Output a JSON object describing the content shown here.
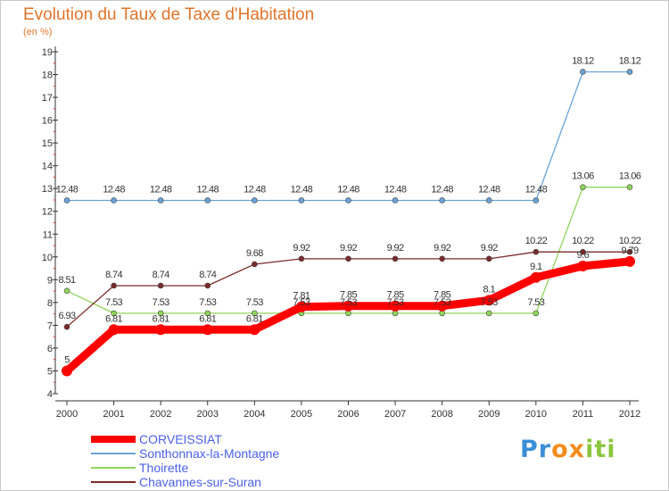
{
  "chart_data": {
    "type": "line",
    "title": "Evolution du Taux de Taxe d'Habitation",
    "unit_label": "(en %)",
    "xlabel": "",
    "ylabel": "(en %)",
    "categories": [
      "2000",
      "2001",
      "2002",
      "2003",
      "2004",
      "2005",
      "2006",
      "2007",
      "2008",
      "2009",
      "2010",
      "2011",
      "2012"
    ],
    "ylim": [
      4,
      19
    ],
    "yticks": [
      4,
      5,
      6,
      7,
      8,
      9,
      10,
      11,
      12,
      13,
      14,
      15,
      16,
      17,
      18,
      19
    ],
    "grid": false,
    "legend_position": "bottom-left",
    "series": [
      {
        "name": "CORVEISSIAT",
        "color": "#ff0000",
        "values": [
          5,
          6.81,
          6.81,
          6.81,
          6.81,
          7.81,
          7.85,
          7.85,
          7.85,
          8.1,
          9.1,
          9.6,
          9.8
        ],
        "labels": [
          "5",
          "6.81",
          "6.81",
          "6.81",
          "6.81",
          "7.81",
          "7.85",
          "7.85",
          "7.85",
          "8.1",
          "9.1",
          "9.6",
          "9.79"
        ]
      },
      {
        "name": "Sonthonnax-la-Montagne",
        "color": "#6aa3d6",
        "values": [
          12.48,
          12.48,
          12.48,
          12.48,
          12.48,
          12.48,
          12.48,
          12.48,
          12.48,
          12.48,
          12.48,
          18.12,
          18.12
        ],
        "labels": [
          "12.48",
          "12.48",
          "12.48",
          "12.48",
          "12.48",
          "12.48",
          "12.48",
          "12.48",
          "12.48",
          "12.48",
          "12.48",
          "18.12",
          "18.12"
        ]
      },
      {
        "name": "Thoirette",
        "color": "#8fd45a",
        "values": [
          8.51,
          7.53,
          7.53,
          7.53,
          7.53,
          7.53,
          7.53,
          7.53,
          7.53,
          7.53,
          7.53,
          13.06,
          13.06
        ],
        "labels": [
          "8.51",
          "7.53",
          "7.53",
          "7.53",
          "7.53",
          "7.53",
          "7.53",
          "7.53",
          "7.53",
          "7.53",
          "7.53",
          "13.06",
          "13.06"
        ]
      },
      {
        "name": "Chavannes-sur-Suran",
        "color": "#7a2a2a",
        "values": [
          6.93,
          8.74,
          8.74,
          8.74,
          9.68,
          9.92,
          9.92,
          9.92,
          9.92,
          9.92,
          10.22,
          10.22,
          10.22
        ],
        "labels": [
          "6.93",
          "8.74",
          "8.74",
          "8.74",
          "9.68",
          "9.92",
          "9.92",
          "9.92",
          "9.92",
          "9.92",
          "10.22",
          "10.22",
          "10.22"
        ]
      }
    ]
  },
  "brand": {
    "part1": "Pr",
    "part2": "ox",
    "part3": "iti"
  }
}
